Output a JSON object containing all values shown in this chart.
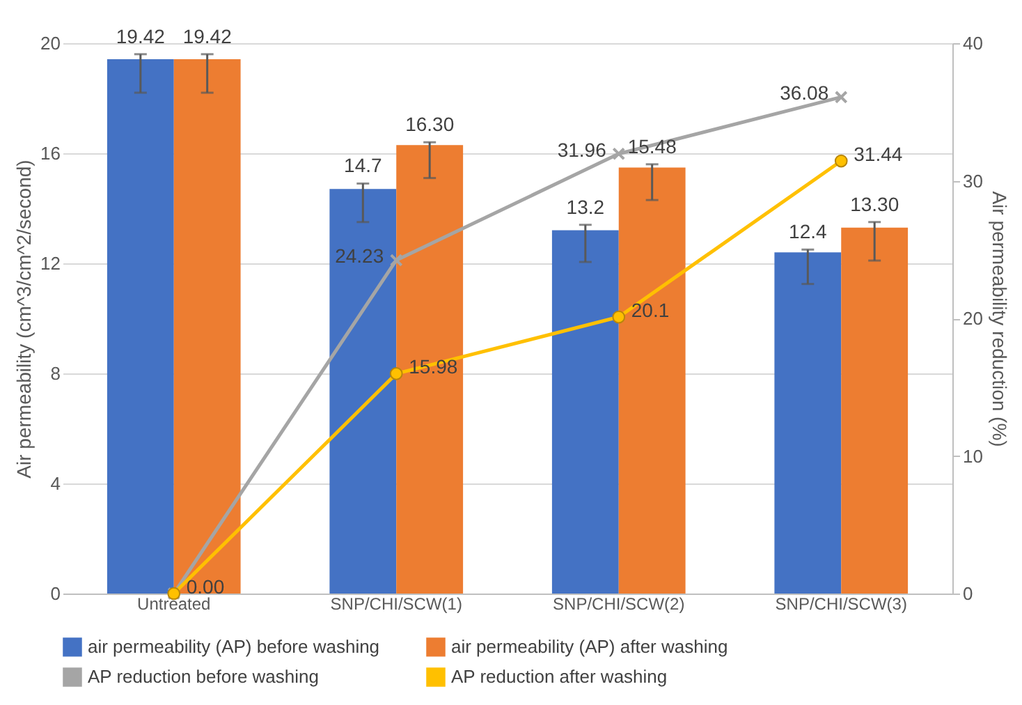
{
  "chart_data": {
    "type": "bar",
    "categories": [
      "Untreated",
      "SNP/CHI/SCW(1)",
      "SNP/CHI/SCW(2)",
      "SNP/CHI/SCW(3)"
    ],
    "ylabel": "Air permeability (cm^3/cm^2/second)",
    "y2label": "Air permeability reduction (%)",
    "ylim": [
      0,
      20
    ],
    "yticks": [
      0,
      4,
      8,
      12,
      16,
      20
    ],
    "y2lim": [
      0,
      40
    ],
    "y2ticks": [
      0,
      10,
      20,
      30,
      40
    ],
    "grid": "y",
    "legend": "bottom",
    "series": [
      {
        "name": "air permeability (AP) before washing",
        "color": "#4472c4",
        "values": [
          19.42,
          14.7,
          13.2,
          12.4
        ],
        "errors": [
          [
            18.2,
            19.6
          ],
          [
            13.5,
            14.9
          ],
          [
            12.05,
            13.4
          ],
          [
            11.25,
            12.5
          ]
        ],
        "value_labels": [
          "19.42",
          "14.7",
          "13.2",
          "12.4"
        ]
      },
      {
        "name": "air permeability (AP) after washing",
        "color": "#ed7d31",
        "values": [
          19.42,
          16.3,
          15.48,
          13.3
        ],
        "errors": [
          [
            18.2,
            19.6
          ],
          [
            15.1,
            16.4
          ],
          [
            14.3,
            15.6
          ],
          [
            12.1,
            13.5
          ]
        ],
        "value_labels": [
          "19.42",
          "16.30",
          "15.48",
          "13.30"
        ]
      },
      {
        "name": "AP reduction before washing",
        "type": "line",
        "axis": "y2",
        "marker": "cross",
        "color": "#a5a5a5",
        "values": [
          0,
          24.23,
          31.96,
          36.08
        ],
        "value_labels": [
          null,
          "24.23",
          "31.96",
          "36.08"
        ]
      },
      {
        "name": "AP reduction after washing",
        "type": "line",
        "axis": "y2",
        "marker": "circle",
        "color": "#ffc000",
        "values": [
          0,
          15.98,
          20.1,
          31.44
        ],
        "value_labels": [
          "0.00",
          "15.98",
          "20.1",
          "31.44"
        ]
      }
    ]
  }
}
